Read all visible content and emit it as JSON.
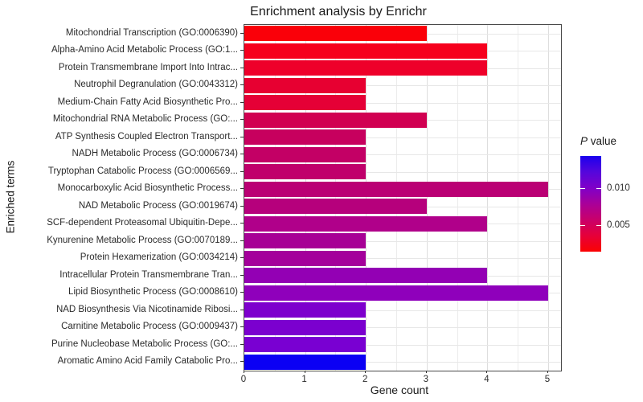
{
  "title": "Enrichment analysis by Enrichr",
  "axes": {
    "x_label": "Gene count",
    "y_label": "Enriched terms"
  },
  "legend": {
    "title_italic": "P",
    "title_rest": " value",
    "tick_labels": [
      "0.010",
      "0.005"
    ],
    "gradient_stops": [
      "#1B00EE",
      "#5506DC",
      "#8000C8",
      "#A90099",
      "#C9006A",
      "#E60039",
      "#FB0202"
    ]
  },
  "chart_data": {
    "type": "bar",
    "orientation": "horizontal",
    "title": "Enrichment analysis by Enrichr",
    "xlabel": "Gene count",
    "ylabel": "Enriched terms",
    "xlim": [
      0,
      5.2
    ],
    "x_ticks": [
      0,
      1,
      2,
      3,
      4,
      5
    ],
    "grid": true,
    "legend_position": "right",
    "color_scale": {
      "label": "P value",
      "tick_values": [
        0.01,
        0.005
      ],
      "low_p_color": "#FF0000",
      "high_p_color": "#0000F4"
    },
    "bars": [
      {
        "term": "Mitochondrial Transcription (GO:0006390)",
        "gene_count": 3,
        "color": "#FA0009"
      },
      {
        "term": "Alpha-Amino Acid Metabolic Process (GO:1...",
        "gene_count": 4,
        "color": "#F6001D"
      },
      {
        "term": "Protein Transmembrane Import Into Intrac...",
        "gene_count": 4,
        "color": "#EE002A"
      },
      {
        "term": "Neutrophil Degranulation (GO:0043312)",
        "gene_count": 2,
        "color": "#E70031"
      },
      {
        "term": "Medium-Chain Fatty Acid Biosynthetic Pro...",
        "gene_count": 2,
        "color": "#E50036"
      },
      {
        "term": "Mitochondrial RNA Metabolic Process (GO:...",
        "gene_count": 3,
        "color": "#D10051"
      },
      {
        "term": "ATP Synthesis Coupled Electron Transport...",
        "gene_count": 2,
        "color": "#C7005E"
      },
      {
        "term": "NADH Metabolic Process (GO:0006734)",
        "gene_count": 2,
        "color": "#C30065"
      },
      {
        "term": "Tryptophan Catabolic Process (GO:0006569...",
        "gene_count": 2,
        "color": "#C0006B"
      },
      {
        "term": "Monocarboxylic Acid Biosynthetic Process...",
        "gene_count": 5,
        "color": "#BA0074"
      },
      {
        "term": "NAD Metabolic Process (GO:0019674)",
        "gene_count": 3,
        "color": "#B6007C"
      },
      {
        "term": "SCF-dependent Proteasomal Ubiquitin-Depe...",
        "gene_count": 4,
        "color": "#B0008A"
      },
      {
        "term": "Kynurenine Metabolic Process (GO:0070189...",
        "gene_count": 2,
        "color": "#A70095"
      },
      {
        "term": "Protein Hexamerization (GO:0034214)",
        "gene_count": 2,
        "color": "#A4009B"
      },
      {
        "term": "Intracellular Protein Transmembrane Tran...",
        "gene_count": 4,
        "color": "#9300B4"
      },
      {
        "term": "Lipid Biosynthetic Process (GO:0008610)",
        "gene_count": 5,
        "color": "#8F00BB"
      },
      {
        "term": "NAD Biosynthesis Via Nicotinamide Ribosi...",
        "gene_count": 2,
        "color": "#7D00CD"
      },
      {
        "term": "Carnitine Metabolic Process (GO:0009437)",
        "gene_count": 2,
        "color": "#7B00CF"
      },
      {
        "term": "Purine Nucleobase Metabolic Process (GO:...",
        "gene_count": 2,
        "color": "#7900D2"
      },
      {
        "term": "Aromatic Amino Acid Family Catabolic Pro...",
        "gene_count": 2,
        "color": "#0B00F4"
      }
    ]
  }
}
